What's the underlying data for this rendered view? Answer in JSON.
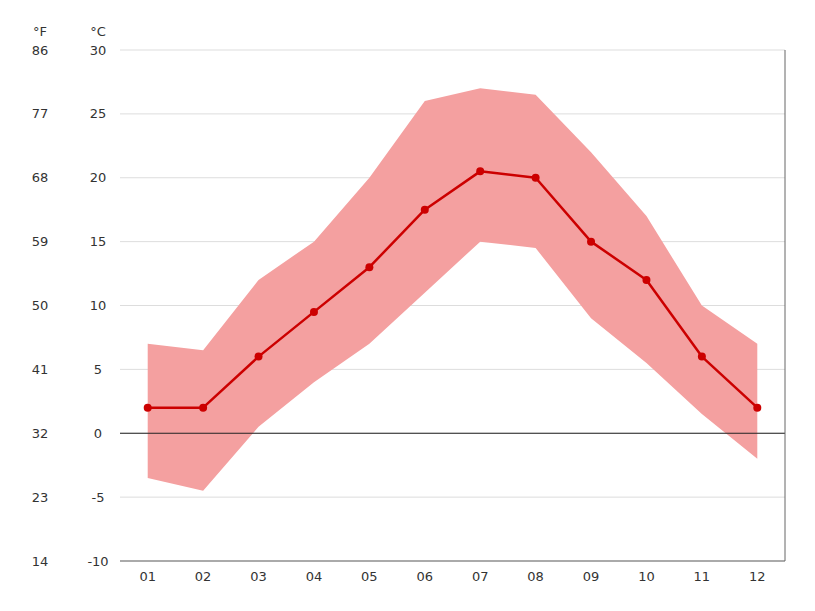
{
  "chart_data": {
    "type": "line",
    "categories": [
      "01",
      "02",
      "03",
      "04",
      "05",
      "06",
      "07",
      "08",
      "09",
      "10",
      "11",
      "12"
    ],
    "series": [
      {
        "type": "area",
        "color": "#f4a0a0",
        "low": [
          -3.5,
          -4.5,
          0.5,
          4.0,
          7.0,
          11.0,
          15.0,
          14.5,
          9.0,
          5.5,
          1.5,
          -2.0
        ],
        "high": [
          7.0,
          6.5,
          12.0,
          15.0,
          20.0,
          26.0,
          27.0,
          26.5,
          22.0,
          17.0,
          10.0,
          7.0
        ]
      },
      {
        "type": "line",
        "color": "#cc0000",
        "marker": "circle",
        "values": [
          2.0,
          2.0,
          6.0,
          9.5,
          13.0,
          17.5,
          20.5,
          20.0,
          15.0,
          12.0,
          6.0,
          2.0
        ]
      }
    ],
    "ylabel": "°C",
    "ylim": [
      -10,
      30
    ],
    "yticks": [
      -10,
      -5,
      0,
      5,
      10,
      15,
      20,
      25,
      30
    ],
    "y2label": "°F",
    "y2lim": [
      14,
      86
    ],
    "y2ticks": [
      14,
      23,
      32,
      41,
      50,
      59,
      68,
      77,
      86
    ],
    "grid": true
  }
}
